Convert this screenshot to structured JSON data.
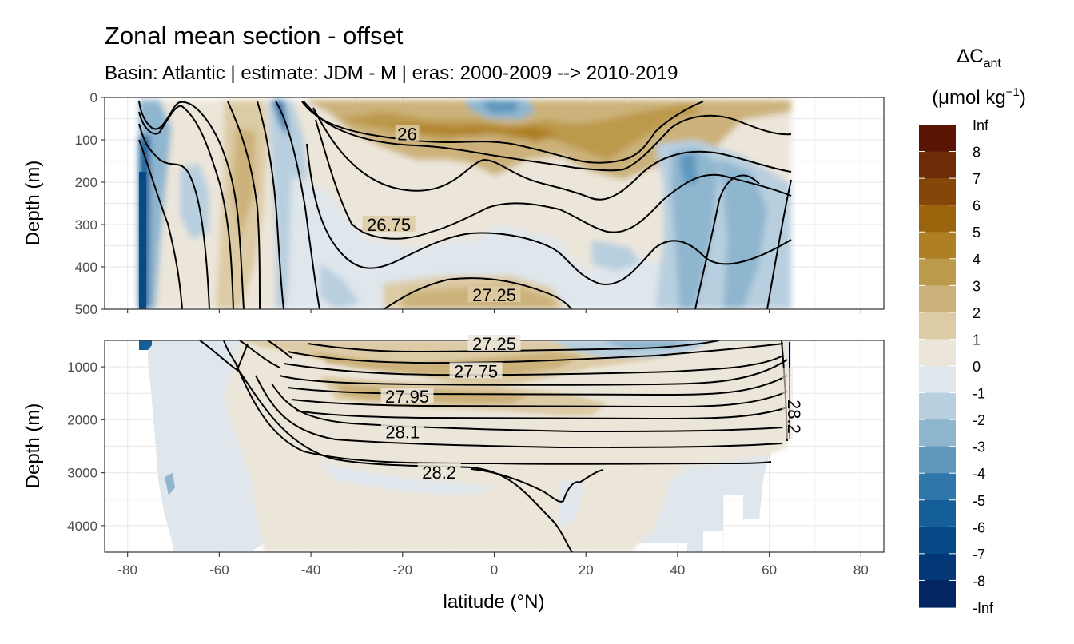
{
  "chart_data": {
    "type": "contour",
    "title": "Zonal mean section - offset",
    "subtitle": "Basin: Atlantic | estimate: JDM - M | eras: 2000-2009 --> 2010-2019",
    "xlabel": "latitude (°N)",
    "ylabel_top": "Depth (m)",
    "ylabel_bottom": "Depth (m)",
    "xlim": [
      -85,
      85
    ],
    "x_ticks": [
      "-80",
      "-60",
      "-40",
      "-20",
      "0",
      "20",
      "40",
      "60",
      "80"
    ],
    "panels": [
      {
        "name": "upper",
        "ylim": [
          0,
          500
        ],
        "y_ticks": [
          "0",
          "100",
          "200",
          "300",
          "400",
          "500"
        ]
      },
      {
        "name": "lower",
        "ylim": [
          500,
          4500
        ],
        "y_ticks": [
          "1000",
          "2000",
          "3000",
          "4000"
        ]
      }
    ],
    "legend": {
      "title_main": "ΔC",
      "title_sub": "ant",
      "unit_main": "(μmol kg",
      "unit_sup": "−1",
      "unit_close": ")",
      "labels": [
        "Inf",
        "8",
        "7",
        "6",
        "5",
        "4",
        "3",
        "2",
        "1",
        "0",
        "-1",
        "-2",
        "-3",
        "-4",
        "-5",
        "-6",
        "-7",
        "-8",
        "-Inf"
      ],
      "colors": [
        "#5a1404",
        "#6e2b07",
        "#844709",
        "#9a640d",
        "#ae7f24",
        "#bc9a4c",
        "#ccb27a",
        "#ddcba5",
        "#ece6da",
        "#dfe6ec",
        "#b8cfdf",
        "#8fb6cf",
        "#5f97bd",
        "#2f77ab",
        "#155f99",
        "#074a87",
        "#043775",
        "#032561"
      ]
    },
    "isopycnals": [
      {
        "label": "26",
        "lat": -19,
        "depth": 86
      },
      {
        "label": "26.75",
        "lat": -23,
        "depth": 300
      },
      {
        "label": "27.25",
        "lat": 0,
        "depth": 466
      },
      {
        "label": "27.25",
        "lat": 0,
        "depth": 560
      },
      {
        "label": "27.75",
        "lat": -4,
        "depth": 1080
      },
      {
        "label": "27.95",
        "lat": -19,
        "depth": 1560
      },
      {
        "label": "28.1",
        "lat": -20,
        "depth": 2230
      },
      {
        "label": "28.2",
        "lat": -12,
        "depth": 2990
      }
    ]
  }
}
